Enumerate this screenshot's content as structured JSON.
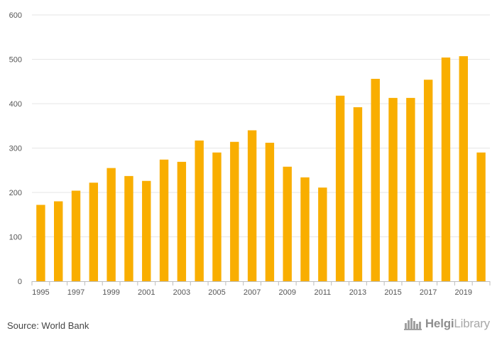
{
  "chart_data": {
    "type": "bar",
    "categories": [
      "1995",
      "1996",
      "1997",
      "1998",
      "1999",
      "2000",
      "2001",
      "2002",
      "2003",
      "2004",
      "2005",
      "2006",
      "2007",
      "2008",
      "2009",
      "2010",
      "2011",
      "2012",
      "2013",
      "2014",
      "2015",
      "2016",
      "2017",
      "2018",
      "2019",
      "2020"
    ],
    "values": [
      172,
      180,
      204,
      222,
      255,
      237,
      226,
      274,
      269,
      317,
      290,
      314,
      340,
      312,
      258,
      234,
      211,
      418,
      392,
      456,
      413,
      413,
      454,
      504,
      507,
      290
    ],
    "x_tick_labels": [
      "1995",
      "1997",
      "1999",
      "2001",
      "2003",
      "2005",
      "2007",
      "2009",
      "2011",
      "2013",
      "2015",
      "2017",
      "2019"
    ],
    "y_ticks": [
      0,
      100,
      200,
      300,
      400,
      500,
      600
    ],
    "ylim": [
      0,
      600
    ],
    "title": "",
    "xlabel": "",
    "ylabel": "",
    "grid": true,
    "legend": "none",
    "bar_color": "#F9AE00",
    "grid_color": "#E6E6E6"
  },
  "footer": {
    "source": "Source: World Bank",
    "logo_bold": "Helgi",
    "logo_light": "Library"
  },
  "icons": {
    "logo_mark": "city-skyline-icon"
  }
}
